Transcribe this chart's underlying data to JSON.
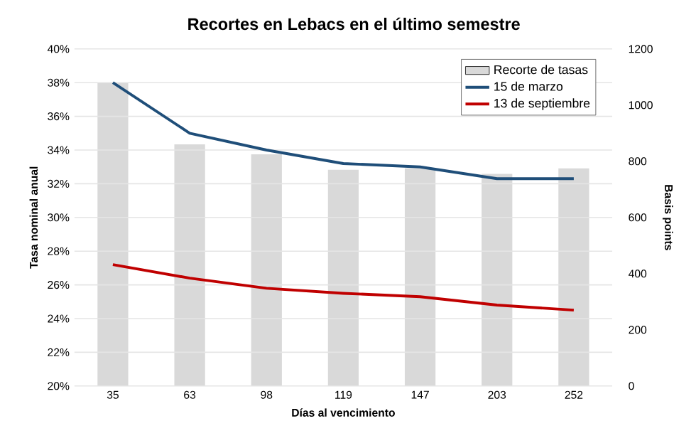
{
  "chart_data": {
    "type": "line",
    "title": "Recortes en Lebacs en el último semestre",
    "xlabel": "Días al vencimiento",
    "ylabel": "Tasa nominal anual",
    "y2label": "Basis points",
    "categories": [
      "35",
      "63",
      "98",
      "119",
      "147",
      "203",
      "252"
    ],
    "series": [
      {
        "name": "Recorte de tasas",
        "type": "bar",
        "axis": "y2",
        "color": "#d9d9d9",
        "values": [
          1080,
          860,
          825,
          770,
          775,
          755,
          775
        ]
      },
      {
        "name": "15 de marzo",
        "color": "#1f4e79",
        "values": [
          38.0,
          35.0,
          34.0,
          33.2,
          33.0,
          32.3,
          32.3
        ]
      },
      {
        "name": "13 de septiembre",
        "color": "#c00000",
        "values": [
          27.2,
          26.4,
          25.8,
          25.5,
          25.3,
          24.8,
          24.5
        ]
      }
    ],
    "ylim": [
      20,
      40
    ],
    "yticks": [
      {
        "value": 20,
        "label": "20%"
      },
      {
        "value": 22,
        "label": "22%"
      },
      {
        "value": 24,
        "label": "24%"
      },
      {
        "value": 26,
        "label": "26%"
      },
      {
        "value": 28,
        "label": "28%"
      },
      {
        "value": 30,
        "label": "30%"
      },
      {
        "value": 32,
        "label": "32%"
      },
      {
        "value": 34,
        "label": "34%"
      },
      {
        "value": 36,
        "label": "36%"
      },
      {
        "value": 38,
        "label": "38%"
      },
      {
        "value": 40,
        "label": "40%"
      }
    ],
    "y2lim": [
      0,
      1200
    ],
    "y2ticks": [
      0,
      200,
      400,
      600,
      800,
      1000,
      1200
    ],
    "grid": "y",
    "legend": "top right",
    "marker": "none",
    "line_style": "solid"
  }
}
